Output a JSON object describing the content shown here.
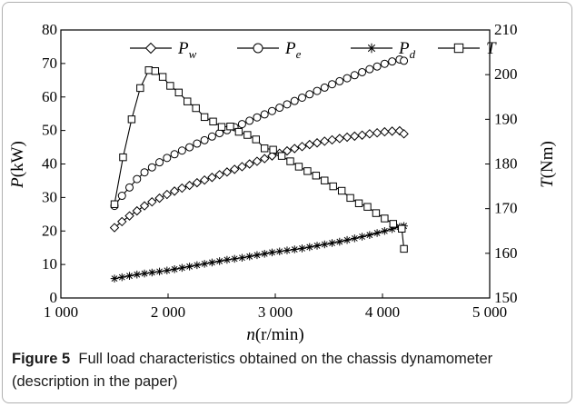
{
  "figure": {
    "label": "Figure 5",
    "caption": "Full load characteristics obtained on the chassis dynamometer (description in the paper)"
  },
  "chart_data": {
    "type": "line",
    "x_axis": {
      "label_var": "n",
      "label_unit": "(r/min)",
      "range": [
        1000,
        5000
      ],
      "ticks": [
        1000,
        2000,
        3000,
        4000,
        5000
      ],
      "tick_labels": [
        "1 000",
        "2 000",
        "3 000",
        "4 000",
        "5 000"
      ]
    },
    "y_axis_left": {
      "label_var": "P",
      "label_unit": "(kW)",
      "range": [
        0,
        80
      ],
      "ticks": [
        0,
        10,
        20,
        30,
        40,
        50,
        60,
        70,
        80
      ],
      "tick_labels": [
        "0",
        "10",
        "20",
        "30",
        "40",
        "50",
        "60",
        "70",
        "80"
      ]
    },
    "y_axis_right": {
      "label_var": "T",
      "label_unit": "(Nm)",
      "range": [
        150,
        210
      ],
      "ticks": [
        150,
        160,
        170,
        180,
        190,
        200,
        210
      ],
      "tick_labels": [
        "150",
        "160",
        "170",
        "180",
        "190",
        "200",
        "210"
      ]
    },
    "legend_position": "top",
    "series": [
      {
        "name": "P",
        "subscript": "w",
        "marker": "diamond",
        "axis": "left",
        "x": [
          1500,
          1570,
          1640,
          1710,
          1780,
          1850,
          1920,
          1990,
          2060,
          2130,
          2200,
          2270,
          2340,
          2410,
          2480,
          2550,
          2620,
          2690,
          2760,
          2830,
          2900,
          2970,
          3040,
          3110,
          3180,
          3250,
          3320,
          3390,
          3460,
          3530,
          3600,
          3670,
          3740,
          3810,
          3880,
          3950,
          4020,
          4090,
          4160,
          4200
        ],
        "y": [
          21,
          22.8,
          24.5,
          26,
          27.5,
          28.7,
          29.8,
          30.9,
          31.9,
          32.8,
          33.6,
          34.4,
          35.2,
          36,
          36.8,
          37.6,
          38.4,
          39.2,
          40,
          40.8,
          41.6,
          42.4,
          43.2,
          43.9,
          44.6,
          45.2,
          45.8,
          46.3,
          46.8,
          47.2,
          47.6,
          48,
          48.3,
          48.6,
          49,
          49.3,
          49.6,
          49.8,
          49.9,
          49
        ]
      },
      {
        "name": "P",
        "subscript": "e",
        "marker": "circle",
        "axis": "left",
        "x": [
          1500,
          1570,
          1640,
          1710,
          1780,
          1850,
          1920,
          1990,
          2060,
          2130,
          2200,
          2270,
          2340,
          2410,
          2480,
          2550,
          2620,
          2690,
          2760,
          2830,
          2900,
          2970,
          3040,
          3110,
          3180,
          3250,
          3320,
          3390,
          3460,
          3530,
          3600,
          3670,
          3740,
          3810,
          3880,
          3950,
          4020,
          4090,
          4160,
          4200
        ],
        "y": [
          27.5,
          30.5,
          33,
          35.5,
          37.5,
          39,
          40.5,
          41.8,
          42.9,
          44,
          45,
          46.1,
          47.1,
          48.2,
          49.2,
          50.1,
          51,
          51.9,
          52.9,
          53.9,
          54.8,
          55.8,
          56.8,
          57.8,
          58.8,
          59.8,
          60.8,
          61.8,
          62.8,
          63.8,
          64.7,
          65.6,
          66.5,
          67.4,
          68.3,
          69.1,
          69.9,
          70.6,
          71.2,
          70.8
        ]
      },
      {
        "name": "P",
        "subscript": "d",
        "marker": "asterisk",
        "axis": "left",
        "x": [
          1500,
          1570,
          1640,
          1710,
          1780,
          1850,
          1920,
          1990,
          2060,
          2130,
          2200,
          2270,
          2340,
          2410,
          2480,
          2550,
          2620,
          2690,
          2760,
          2830,
          2900,
          2970,
          3040,
          3110,
          3180,
          3250,
          3320,
          3390,
          3460,
          3530,
          3600,
          3670,
          3740,
          3810,
          3880,
          3950,
          4020,
          4090,
          4160,
          4200
        ],
        "y": [
          5.8,
          6.2,
          6.6,
          7,
          7.3,
          7.6,
          7.9,
          8.2,
          8.6,
          9,
          9.4,
          9.8,
          10.2,
          10.6,
          11,
          11.4,
          11.7,
          12,
          12.4,
          12.8,
          13.2,
          13.6,
          13.9,
          14.2,
          14.5,
          14.8,
          15.2,
          15.6,
          16,
          16.4,
          16.8,
          17.3,
          17.8,
          18.3,
          18.8,
          19.4,
          20,
          20.6,
          21.2,
          21.5
        ]
      },
      {
        "name": "T",
        "subscript": "",
        "marker": "square",
        "axis": "right",
        "x": [
          1500,
          1580,
          1660,
          1740,
          1820,
          1880,
          1950,
          2020,
          2100,
          2180,
          2260,
          2340,
          2420,
          2500,
          2580,
          2660,
          2740,
          2820,
          2900,
          2980,
          3060,
          3140,
          3220,
          3300,
          3380,
          3460,
          3540,
          3620,
          3700,
          3780,
          3860,
          3940,
          4020,
          4100,
          4180,
          4200
        ],
        "y": [
          171,
          181.5,
          190,
          197,
          201,
          200.8,
          199.5,
          197.5,
          196,
          194,
          192.5,
          190.5,
          189.5,
          188.3,
          188.4,
          187.2,
          186.5,
          185.5,
          183.5,
          183.2,
          181.8,
          180.6,
          179.4,
          178.4,
          177.4,
          176.3,
          175,
          174,
          172.4,
          171.2,
          170.4,
          169,
          167.8,
          166.6,
          165.5,
          161
        ]
      }
    ]
  }
}
